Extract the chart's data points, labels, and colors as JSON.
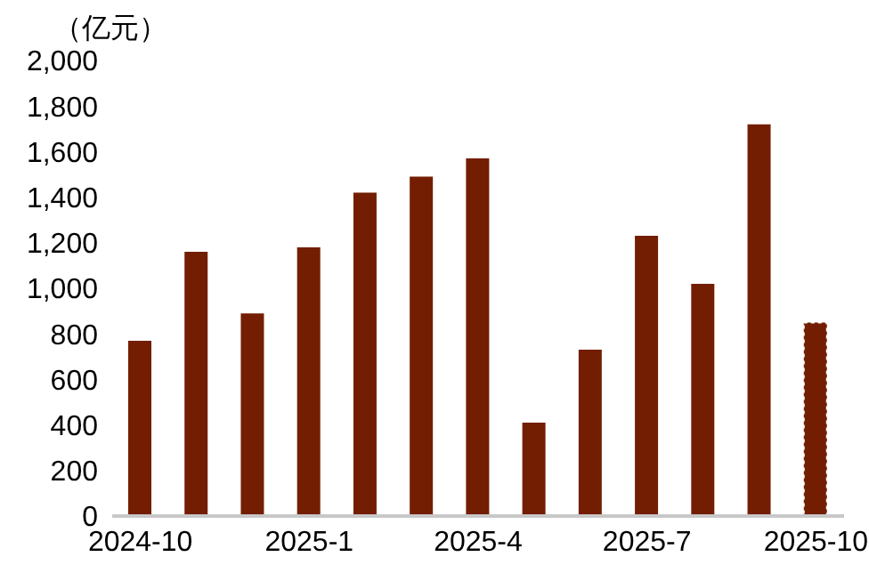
{
  "chart_data": {
    "type": "bar",
    "ylabel": "（亿元）",
    "categories": [
      "2024-10",
      null,
      null,
      "2025-1",
      null,
      null,
      "2025-4",
      null,
      null,
      "2025-7",
      null,
      null,
      "2025-10"
    ],
    "values": [
      770,
      1160,
      890,
      1180,
      1420,
      1490,
      1570,
      410,
      730,
      1230,
      1020,
      1720,
      850
    ],
    "color": "#731e02",
    "ylim": [
      0,
      2000
    ],
    "yticks": [
      {
        "value": 0,
        "label": "0"
      },
      {
        "value": 200,
        "label": "200"
      },
      {
        "value": 400,
        "label": "400"
      },
      {
        "value": 600,
        "label": "600"
      },
      {
        "value": 800,
        "label": "800"
      },
      {
        "value": 1000,
        "label": "1,000"
      },
      {
        "value": 1200,
        "label": "1,200"
      },
      {
        "value": 1400,
        "label": "1,400"
      },
      {
        "value": 1600,
        "label": "1,600"
      },
      {
        "value": 1800,
        "label": "1,800"
      },
      {
        "value": 2000,
        "label": "2,000"
      }
    ],
    "grid": false,
    "legend": false
  }
}
